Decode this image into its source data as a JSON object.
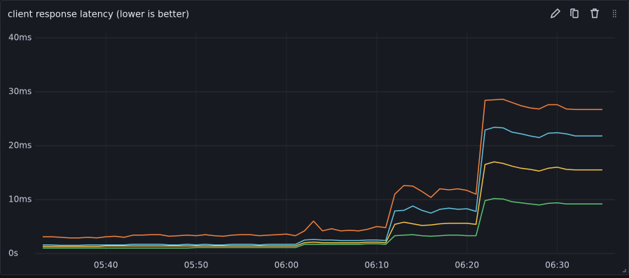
{
  "chart_data": {
    "type": "line",
    "title": "client response latency (lower is better)",
    "x": [
      "05:33",
      "05:34",
      "05:35",
      "05:36",
      "05:37",
      "05:38",
      "05:39",
      "05:40",
      "05:41",
      "05:42",
      "05:43",
      "05:44",
      "05:45",
      "05:46",
      "05:47",
      "05:48",
      "05:49",
      "05:50",
      "05:51",
      "05:52",
      "05:53",
      "05:54",
      "05:55",
      "05:56",
      "05:57",
      "05:58",
      "05:59",
      "06:00",
      "06:01",
      "06:02",
      "06:03",
      "06:04",
      "06:05",
      "06:06",
      "06:07",
      "06:08",
      "06:09",
      "06:10",
      "06:11",
      "06:12",
      "06:13",
      "06:14",
      "06:15",
      "06:16",
      "06:17",
      "06:18",
      "06:19",
      "06:20",
      "06:21",
      "06:22",
      "06:23",
      "06:24",
      "06:25",
      "06:26",
      "06:27",
      "06:28",
      "06:29",
      "06:30",
      "06:31",
      "06:32",
      "06:33",
      "06:34",
      "06:35"
    ],
    "xlim": [
      "05:33",
      "06:35"
    ],
    "xticks": [
      "05:40",
      "05:50",
      "06:00",
      "06:10",
      "06:20",
      "06:30"
    ],
    "ylim": [
      0,
      40
    ],
    "yticks": [
      {
        "value": 0,
        "label": "0s"
      },
      {
        "value": 10,
        "label": "10ms"
      },
      {
        "value": 20,
        "label": "20ms"
      },
      {
        "value": 30,
        "label": "30ms"
      },
      {
        "value": 40,
        "label": "40ms"
      }
    ],
    "grid": true,
    "series": [
      {
        "color": "#f2813b",
        "values": [
          3.1,
          3.1,
          3.0,
          2.9,
          2.9,
          3.0,
          2.9,
          3.1,
          3.2,
          3.0,
          3.4,
          3.4,
          3.5,
          3.5,
          3.2,
          3.3,
          3.4,
          3.3,
          3.5,
          3.3,
          3.2,
          3.4,
          3.5,
          3.5,
          3.3,
          3.4,
          3.5,
          3.6,
          3.3,
          4.2,
          6.0,
          4.2,
          4.6,
          4.2,
          4.3,
          4.2,
          4.5,
          5.0,
          4.8,
          11.0,
          12.6,
          12.5,
          11.5,
          10.4,
          12.0,
          11.8,
          12.0,
          11.7,
          11.0,
          28.4,
          28.5,
          28.6,
          28.0,
          27.4,
          27.0,
          26.8,
          27.6,
          27.6,
          26.8,
          26.7,
          26.7,
          26.7,
          26.7
        ]
      },
      {
        "color": "#62c3dc",
        "values": [
          1.6,
          1.6,
          1.5,
          1.5,
          1.5,
          1.6,
          1.6,
          1.6,
          1.6,
          1.6,
          1.7,
          1.7,
          1.7,
          1.7,
          1.6,
          1.6,
          1.7,
          1.6,
          1.7,
          1.6,
          1.6,
          1.7,
          1.7,
          1.7,
          1.6,
          1.7,
          1.7,
          1.7,
          1.7,
          2.5,
          2.6,
          2.5,
          2.5,
          2.4,
          2.4,
          2.4,
          2.5,
          2.5,
          2.4,
          7.9,
          8.0,
          8.8,
          8.0,
          7.5,
          8.2,
          8.4,
          8.2,
          8.3,
          7.8,
          22.9,
          23.4,
          23.3,
          22.5,
          22.2,
          21.8,
          21.5,
          22.3,
          22.4,
          22.2,
          21.8,
          21.8,
          21.8,
          21.8
        ]
      },
      {
        "color": "#f0c24a",
        "values": [
          1.3,
          1.3,
          1.3,
          1.3,
          1.3,
          1.3,
          1.3,
          1.4,
          1.4,
          1.4,
          1.4,
          1.4,
          1.4,
          1.4,
          1.4,
          1.4,
          1.4,
          1.4,
          1.4,
          1.4,
          1.4,
          1.4,
          1.4,
          1.4,
          1.4,
          1.4,
          1.4,
          1.4,
          1.4,
          2.0,
          2.1,
          2.0,
          2.0,
          2.0,
          2.0,
          2.0,
          2.1,
          2.1,
          2.0,
          5.4,
          5.8,
          5.5,
          5.2,
          5.3,
          5.5,
          5.6,
          5.6,
          5.6,
          5.4,
          16.5,
          17.0,
          16.7,
          16.2,
          15.8,
          15.6,
          15.3,
          15.8,
          16.0,
          15.6,
          15.5,
          15.5,
          15.5,
          15.5
        ]
      },
      {
        "color": "#5ac270",
        "values": [
          1.0,
          1.0,
          1.0,
          1.0,
          1.0,
          1.0,
          1.0,
          1.0,
          1.0,
          1.0,
          1.0,
          1.0,
          1.0,
          1.0,
          1.0,
          1.0,
          1.0,
          1.1,
          1.1,
          1.1,
          1.1,
          1.1,
          1.1,
          1.1,
          1.1,
          1.1,
          1.1,
          1.1,
          1.1,
          1.7,
          1.7,
          1.7,
          1.7,
          1.7,
          1.7,
          1.7,
          1.8,
          1.8,
          1.7,
          3.3,
          3.4,
          3.5,
          3.3,
          3.2,
          3.3,
          3.4,
          3.4,
          3.3,
          3.3,
          9.8,
          10.2,
          10.1,
          9.6,
          9.4,
          9.2,
          9.0,
          9.3,
          9.4,
          9.2,
          9.2,
          9.2,
          9.2,
          9.2
        ]
      }
    ]
  }
}
